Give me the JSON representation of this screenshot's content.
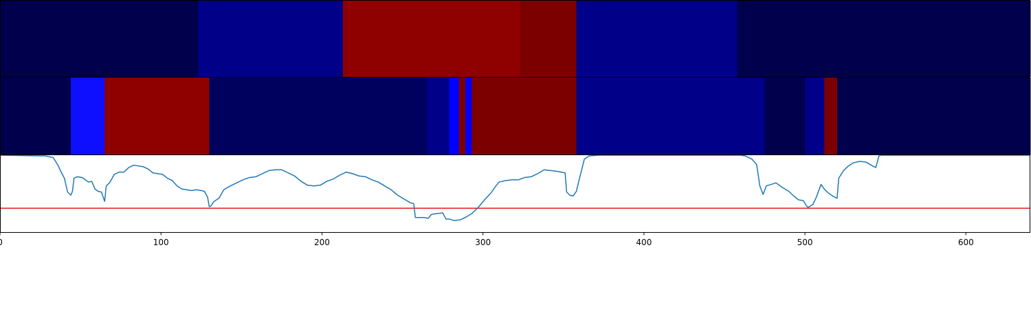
{
  "chart_data": {
    "type": "heatmap",
    "xlim": [
      0,
      640
    ],
    "x_ticks": [
      0,
      100,
      200,
      300,
      400,
      500,
      600
    ],
    "x_tick_labels": [
      "0",
      "100",
      "200",
      "300",
      "400",
      "500",
      "600"
    ],
    "grid": false,
    "legend": "none",
    "rows": [
      {
        "segments": [
          {
            "start": 0,
            "end": 123,
            "color": "#00004c"
          },
          {
            "start": 123,
            "end": 213,
            "color": "#000088"
          },
          {
            "start": 213,
            "end": 323,
            "color": "#8f0000"
          },
          {
            "start": 323,
            "end": 358,
            "color": "#7c0000"
          },
          {
            "start": 358,
            "end": 458,
            "color": "#000088"
          },
          {
            "start": 458,
            "end": 640,
            "color": "#00004c"
          }
        ]
      },
      {
        "segments": [
          {
            "start": 0,
            "end": 44,
            "color": "#00004c"
          },
          {
            "start": 44,
            "end": 65,
            "color": "#0f0fff"
          },
          {
            "start": 65,
            "end": 130,
            "color": "#8f0000"
          },
          {
            "start": 130,
            "end": 265,
            "color": "#00005f"
          },
          {
            "start": 265,
            "end": 279,
            "color": "#000088"
          },
          {
            "start": 279,
            "end": 285,
            "color": "#0000ff"
          },
          {
            "start": 285,
            "end": 289,
            "color": "#7c0000"
          },
          {
            "start": 289,
            "end": 293,
            "color": "#0000ff"
          },
          {
            "start": 293,
            "end": 358,
            "color": "#7c0000"
          },
          {
            "start": 358,
            "end": 475,
            "color": "#000088"
          },
          {
            "start": 475,
            "end": 500,
            "color": "#00004c"
          },
          {
            "start": 500,
            "end": 512,
            "color": "#000088"
          },
          {
            "start": 512,
            "end": 520,
            "color": "#7c0000"
          },
          {
            "start": 520,
            "end": 640,
            "color": "#00004c"
          }
        ]
      }
    ],
    "line_series": {
      "color": "#1f77b4",
      "ylim": [
        0,
        1
      ],
      "points": [
        [
          0,
          1.0
        ],
        [
          28,
          0.99
        ],
        [
          33,
          0.97
        ],
        [
          36,
          0.87
        ],
        [
          38,
          0.78
        ],
        [
          40,
          0.7
        ],
        [
          42,
          0.52
        ],
        [
          44,
          0.48
        ],
        [
          45,
          0.53
        ],
        [
          46,
          0.7
        ],
        [
          48,
          0.72
        ],
        [
          51,
          0.71
        ],
        [
          53,
          0.68
        ],
        [
          55,
          0.65
        ],
        [
          57,
          0.66
        ],
        [
          59,
          0.56
        ],
        [
          61,
          0.53
        ],
        [
          63,
          0.52
        ],
        [
          65,
          0.4
        ],
        [
          66,
          0.6
        ],
        [
          68,
          0.64
        ],
        [
          71,
          0.75
        ],
        [
          74,
          0.78
        ],
        [
          77,
          0.78
        ],
        [
          80,
          0.84
        ],
        [
          83,
          0.87
        ],
        [
          86,
          0.86
        ],
        [
          89,
          0.85
        ],
        [
          92,
          0.82
        ],
        [
          95,
          0.77
        ],
        [
          98,
          0.76
        ],
        [
          101,
          0.75
        ],
        [
          104,
          0.7
        ],
        [
          107,
          0.67
        ],
        [
          110,
          0.6
        ],
        [
          113,
          0.56
        ],
        [
          116,
          0.55
        ],
        [
          119,
          0.54
        ],
        [
          122,
          0.55
        ],
        [
          125,
          0.54
        ],
        [
          127,
          0.53
        ],
        [
          129,
          0.45
        ],
        [
          130,
          0.33
        ],
        [
          131,
          0.34
        ],
        [
          133,
          0.4
        ],
        [
          136,
          0.44
        ],
        [
          139,
          0.55
        ],
        [
          143,
          0.6
        ],
        [
          147,
          0.64
        ],
        [
          151,
          0.68
        ],
        [
          155,
          0.71
        ],
        [
          159,
          0.72
        ],
        [
          163,
          0.76
        ],
        [
          167,
          0.8
        ],
        [
          171,
          0.81
        ],
        [
          175,
          0.81
        ],
        [
          179,
          0.77
        ],
        [
          183,
          0.73
        ],
        [
          187,
          0.66
        ],
        [
          191,
          0.61
        ],
        [
          195,
          0.6
        ],
        [
          199,
          0.61
        ],
        [
          203,
          0.66
        ],
        [
          207,
          0.69
        ],
        [
          211,
          0.74
        ],
        [
          215,
          0.78
        ],
        [
          219,
          0.76
        ],
        [
          223,
          0.73
        ],
        [
          227,
          0.72
        ],
        [
          231,
          0.68
        ],
        [
          235,
          0.65
        ],
        [
          239,
          0.6
        ],
        [
          243,
          0.55
        ],
        [
          247,
          0.48
        ],
        [
          251,
          0.43
        ],
        [
          255,
          0.38
        ],
        [
          257,
          0.37
        ],
        [
          258,
          0.19
        ],
        [
          263,
          0.19
        ],
        [
          266,
          0.18
        ],
        [
          268,
          0.23
        ],
        [
          271,
          0.24
        ],
        [
          275,
          0.25
        ],
        [
          277,
          0.17
        ],
        [
          279,
          0.17
        ],
        [
          282,
          0.15
        ],
        [
          286,
          0.16
        ],
        [
          289,
          0.19
        ],
        [
          293,
          0.24
        ],
        [
          297,
          0.32
        ],
        [
          301,
          0.42
        ],
        [
          305,
          0.51
        ],
        [
          308,
          0.6
        ],
        [
          310,
          0.65
        ],
        [
          314,
          0.67
        ],
        [
          318,
          0.68
        ],
        [
          322,
          0.68
        ],
        [
          326,
          0.71
        ],
        [
          330,
          0.72
        ],
        [
          334,
          0.76
        ],
        [
          338,
          0.81
        ],
        [
          342,
          0.8
        ],
        [
          346,
          0.79
        ],
        [
          351,
          0.77
        ],
        [
          352,
          0.52
        ],
        [
          354,
          0.48
        ],
        [
          356,
          0.47
        ],
        [
          358,
          0.53
        ],
        [
          360,
          0.7
        ],
        [
          363,
          0.95
        ],
        [
          366,
          0.99
        ],
        [
          372,
          1.0
        ],
        [
          460,
          1.0
        ],
        [
          463,
          0.99
        ],
        [
          467,
          0.95
        ],
        [
          470,
          0.88
        ],
        [
          472,
          0.6
        ],
        [
          474,
          0.49
        ],
        [
          476,
          0.6
        ],
        [
          479,
          0.62
        ],
        [
          482,
          0.64
        ],
        [
          486,
          0.58
        ],
        [
          490,
          0.53
        ],
        [
          493,
          0.47
        ],
        [
          496,
          0.42
        ],
        [
          499,
          0.41
        ],
        [
          501,
          0.34
        ],
        [
          502,
          0.32
        ],
        [
          505,
          0.36
        ],
        [
          507,
          0.45
        ],
        [
          510,
          0.62
        ],
        [
          512,
          0.56
        ],
        [
          515,
          0.5
        ],
        [
          518,
          0.46
        ],
        [
          520,
          0.44
        ],
        [
          521,
          0.7
        ],
        [
          524,
          0.8
        ],
        [
          527,
          0.86
        ],
        [
          530,
          0.9
        ],
        [
          534,
          0.92
        ],
        [
          538,
          0.91
        ],
        [
          542,
          0.86
        ],
        [
          544,
          0.84
        ],
        [
          546,
          0.99
        ],
        [
          547,
          1.0
        ],
        [
          640,
          1.0
        ]
      ]
    },
    "threshold_line": {
      "color": "#e31a1c",
      "y": 0.31
    }
  }
}
